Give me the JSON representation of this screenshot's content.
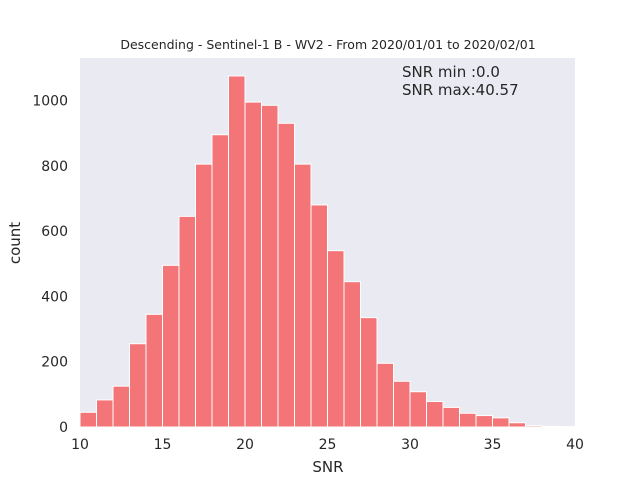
{
  "chart_data": {
    "type": "bar",
    "title": "Descending - Sentinel-1 B - WV2 - From 2020/01/01 to 2020/02/01",
    "xlabel": "SNR",
    "ylabel": "count",
    "xlim": [
      10,
      40
    ],
    "ylim": [
      0,
      1130
    ],
    "grid": false,
    "background": "#eaeaf2",
    "bar_color": "#f47577",
    "bar_edge_color": "#ffffff",
    "x_ticks": [
      10,
      15,
      20,
      25,
      30,
      35,
      40
    ],
    "y_ticks": [
      0,
      200,
      400,
      600,
      800,
      1000
    ],
    "annotations": [
      "SNR min :0.0",
      "SNR max:40.57"
    ],
    "bins": [
      {
        "x0": 10,
        "x1": 11,
        "count": 45
      },
      {
        "x0": 11,
        "x1": 12,
        "count": 83
      },
      {
        "x0": 12,
        "x1": 13,
        "count": 125
      },
      {
        "x0": 13,
        "x1": 14,
        "count": 255
      },
      {
        "x0": 14,
        "x1": 15,
        "count": 345
      },
      {
        "x0": 15,
        "x1": 16,
        "count": 495
      },
      {
        "x0": 16,
        "x1": 17,
        "count": 645
      },
      {
        "x0": 17,
        "x1": 18,
        "count": 805
      },
      {
        "x0": 18,
        "x1": 19,
        "count": 895
      },
      {
        "x0": 19,
        "x1": 20,
        "count": 1075
      },
      {
        "x0": 20,
        "x1": 21,
        "count": 995
      },
      {
        "x0": 21,
        "x1": 22,
        "count": 985
      },
      {
        "x0": 22,
        "x1": 23,
        "count": 930
      },
      {
        "x0": 23,
        "x1": 24,
        "count": 805
      },
      {
        "x0": 24,
        "x1": 25,
        "count": 680
      },
      {
        "x0": 25,
        "x1": 26,
        "count": 540
      },
      {
        "x0": 26,
        "x1": 27,
        "count": 445
      },
      {
        "x0": 27,
        "x1": 28,
        "count": 335
      },
      {
        "x0": 28,
        "x1": 29,
        "count": 195
      },
      {
        "x0": 29,
        "x1": 30,
        "count": 140
      },
      {
        "x0": 30,
        "x1": 31,
        "count": 108
      },
      {
        "x0": 31,
        "x1": 32,
        "count": 78
      },
      {
        "x0": 32,
        "x1": 33,
        "count": 60
      },
      {
        "x0": 33,
        "x1": 34,
        "count": 42
      },
      {
        "x0": 34,
        "x1": 35,
        "count": 35
      },
      {
        "x0": 35,
        "x1": 36,
        "count": 28
      },
      {
        "x0": 36,
        "x1": 37,
        "count": 13
      },
      {
        "x0": 37,
        "x1": 38,
        "count": 4
      },
      {
        "x0": 38,
        "x1": 39,
        "count": 2
      },
      {
        "x0": 39,
        "x1": 40,
        "count": 1
      }
    ]
  }
}
